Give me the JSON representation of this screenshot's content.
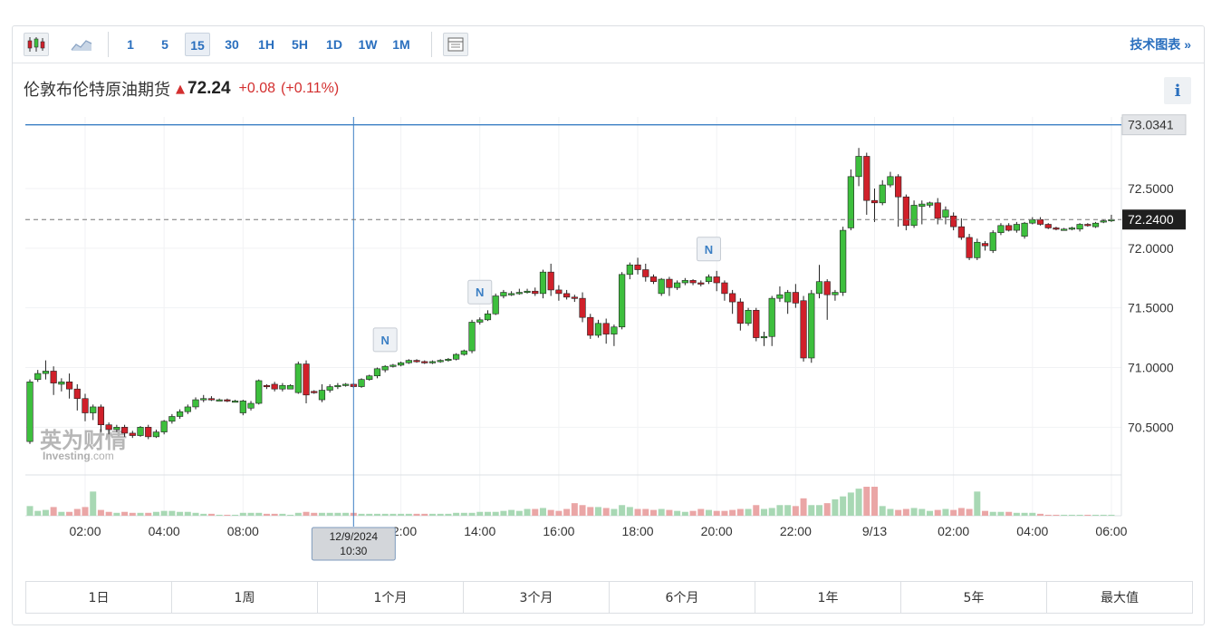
{
  "toolbar": {
    "intervals": [
      "1",
      "5",
      "15",
      "30",
      "1H",
      "5H",
      "1D",
      "1W",
      "1M"
    ],
    "active_interval": "15",
    "technical_link": "技术图表 »"
  },
  "header": {
    "instrument": "伦敦布伦特原油期货",
    "price": "72.24",
    "change": "+0.08",
    "change_pct": "(+0.11%)",
    "info_label": "i"
  },
  "watermark": {
    "cn": "英为财情",
    "en_main": "Investing",
    "en_suffix": ".com"
  },
  "crosshair": {
    "date": "12/9/2024",
    "time": "10:30",
    "price_label": "73.0341",
    "price": 73.0341,
    "candle_index": 41
  },
  "current_price_label": "72.2400",
  "news_markers": [
    {
      "label": "N",
      "candle_index": 45
    },
    {
      "label": "N",
      "candle_index": 57
    },
    {
      "label": "N",
      "candle_index": 86
    }
  ],
  "timeframes": [
    "1日",
    "1周",
    "1个月",
    "3个月",
    "6个月",
    "1年",
    "5年",
    "最大值"
  ],
  "colors": {
    "up": "#3dbf3d",
    "down": "#d0202a",
    "up_volume": "#a8d8b4",
    "down_volume": "#eaa6a6",
    "link": "#2a6fbe"
  },
  "chart_data": {
    "type": "candlestick",
    "y_ticks": [
      "72.5000",
      "72.0000",
      "71.5000",
      "71.0000",
      "70.5000"
    ],
    "y_tick_values": [
      72.5,
      72.0,
      71.5,
      71.0,
      70.5
    ],
    "ylim": [
      70.1,
      73.1
    ],
    "x_tick_labels": [
      {
        "label": "02:00",
        "index": 7
      },
      {
        "label": "04:00",
        "index": 17
      },
      {
        "label": "08:00",
        "index": 27
      },
      {
        "label": "12:00",
        "index": 47
      },
      {
        "label": "14:00",
        "index": 57
      },
      {
        "label": "16:00",
        "index": 67
      },
      {
        "label": "18:00",
        "index": 77
      },
      {
        "label": "20:00",
        "index": 87
      },
      {
        "label": "22:00",
        "index": 97
      },
      {
        "label": "9/13",
        "index": 107
      },
      {
        "label": "02:00",
        "index": 117
      },
      {
        "label": "04:00",
        "index": 127
      },
      {
        "label": "06:00",
        "index": 137
      }
    ],
    "candles": [
      [
        70.38,
        70.88,
        70.36,
        70.9,
        1.0
      ],
      [
        70.9,
        70.95,
        70.88,
        70.98,
        0.5
      ],
      [
        70.95,
        70.97,
        70.9,
        71.06,
        0.6
      ],
      [
        70.97,
        70.87,
        70.77,
        71.01,
        0.9
      ],
      [
        70.86,
        70.88,
        70.8,
        70.91,
        0.4
      ],
      [
        70.88,
        70.82,
        70.74,
        70.95,
        0.4
      ],
      [
        70.82,
        70.74,
        70.64,
        70.86,
        0.7
      ],
      [
        70.74,
        70.62,
        70.55,
        70.78,
        0.9
      ],
      [
        70.62,
        70.67,
        70.56,
        70.69,
        2.5
      ],
      [
        70.67,
        70.52,
        70.46,
        70.69,
        0.6
      ],
      [
        70.52,
        70.48,
        70.44,
        70.54,
        0.4
      ],
      [
        70.48,
        70.5,
        70.46,
        70.52,
        0.3
      ],
      [
        70.5,
        70.45,
        70.42,
        70.52,
        0.4
      ],
      [
        70.45,
        70.43,
        70.41,
        70.47,
        0.3
      ],
      [
        70.43,
        70.5,
        70.42,
        70.51,
        0.3
      ],
      [
        70.5,
        70.42,
        70.4,
        70.52,
        0.3
      ],
      [
        70.42,
        70.46,
        70.41,
        70.48,
        0.4
      ],
      [
        70.46,
        70.55,
        70.44,
        70.56,
        0.5
      ],
      [
        70.55,
        70.59,
        70.53,
        70.61,
        0.5
      ],
      [
        70.59,
        70.63,
        70.57,
        70.65,
        0.4
      ],
      [
        70.63,
        70.67,
        70.61,
        70.69,
        0.4
      ],
      [
        70.67,
        70.73,
        70.65,
        70.75,
        0.3
      ],
      [
        70.73,
        70.74,
        70.71,
        70.77,
        0.2
      ],
      [
        70.74,
        70.73,
        70.72,
        70.76,
        0.2
      ],
      [
        70.73,
        70.73,
        70.72,
        70.74,
        0.1
      ],
      [
        70.73,
        70.72,
        70.71,
        70.74,
        0.1
      ],
      [
        70.72,
        70.72,
        70.71,
        70.73,
        0.1
      ],
      [
        70.62,
        70.72,
        70.6,
        70.73,
        0.3
      ],
      [
        70.66,
        70.7,
        70.64,
        70.72,
        0.3
      ],
      [
        70.7,
        70.89,
        70.69,
        70.9,
        0.3
      ],
      [
        70.85,
        70.84,
        70.82,
        70.86,
        0.2
      ],
      [
        70.86,
        70.82,
        70.8,
        70.88,
        0.2
      ],
      [
        70.82,
        70.85,
        70.8,
        70.87,
        0.2
      ],
      [
        70.82,
        70.85,
        70.82,
        70.86,
        0.1
      ],
      [
        70.79,
        71.03,
        70.78,
        71.05,
        0.3
      ],
      [
        71.03,
        70.77,
        70.7,
        71.06,
        0.4
      ],
      [
        70.8,
        70.79,
        70.78,
        70.81,
        0.3
      ],
      [
        70.73,
        70.81,
        70.71,
        70.86,
        0.3
      ],
      [
        70.81,
        70.84,
        70.79,
        70.86,
        0.3
      ],
      [
        70.84,
        70.85,
        70.82,
        70.87,
        0.3
      ],
      [
        70.85,
        70.86,
        70.84,
        70.87,
        0.3
      ],
      [
        70.86,
        70.84,
        70.83,
        70.87,
        0.3
      ],
      [
        70.84,
        70.9,
        70.83,
        70.91,
        0.2
      ],
      [
        70.9,
        70.93,
        70.89,
        70.94,
        0.2
      ],
      [
        70.93,
        70.99,
        70.91,
        71.0,
        0.2
      ],
      [
        70.98,
        71.01,
        70.96,
        71.02,
        0.2
      ],
      [
        71.01,
        71.02,
        71.0,
        71.03,
        0.2
      ],
      [
        71.02,
        71.04,
        71.01,
        71.05,
        0.2
      ],
      [
        71.04,
        71.06,
        71.03,
        71.07,
        0.2
      ],
      [
        71.06,
        71.05,
        71.04,
        71.07,
        0.2
      ],
      [
        71.05,
        71.04,
        71.03,
        71.06,
        0.2
      ],
      [
        71.04,
        71.05,
        71.03,
        71.06,
        0.2
      ],
      [
        71.05,
        71.06,
        71.04,
        71.07,
        0.2
      ],
      [
        71.06,
        71.07,
        71.05,
        71.08,
        0.2
      ],
      [
        71.07,
        71.11,
        71.06,
        71.12,
        0.3
      ],
      [
        71.11,
        71.14,
        71.1,
        71.15,
        0.3
      ],
      [
        71.14,
        71.38,
        71.12,
        71.4,
        0.3
      ],
      [
        71.38,
        71.4,
        71.36,
        71.42,
        0.4
      ],
      [
        71.4,
        71.45,
        71.39,
        71.48,
        0.4
      ],
      [
        71.45,
        71.6,
        71.44,
        71.62,
        0.4
      ],
      [
        71.6,
        71.63,
        71.58,
        71.65,
        0.5
      ],
      [
        71.62,
        71.62,
        71.6,
        71.64,
        0.6
      ],
      [
        71.62,
        71.63,
        71.61,
        71.66,
        0.5
      ],
      [
        71.63,
        71.64,
        71.62,
        71.66,
        0.7
      ],
      [
        71.64,
        71.62,
        71.6,
        71.67,
        0.7
      ],
      [
        71.62,
        71.8,
        71.58,
        71.82,
        0.8
      ],
      [
        71.8,
        71.65,
        71.6,
        71.87,
        0.6
      ],
      [
        71.65,
        71.62,
        71.56,
        71.69,
        0.5
      ],
      [
        71.62,
        71.59,
        71.57,
        71.65,
        0.7
      ],
      [
        71.59,
        71.58,
        71.55,
        71.61,
        1.3
      ],
      [
        71.58,
        71.42,
        71.38,
        71.63,
        1.1
      ],
      [
        71.42,
        71.27,
        71.24,
        71.45,
        0.9
      ],
      [
        71.27,
        71.37,
        71.25,
        71.4,
        0.9
      ],
      [
        71.37,
        71.28,
        71.2,
        71.41,
        0.8
      ],
      [
        71.28,
        71.34,
        71.18,
        71.36,
        0.7
      ],
      [
        71.34,
        71.78,
        71.32,
        71.8,
        1.1
      ],
      [
        71.78,
        71.86,
        71.74,
        71.88,
        0.9
      ],
      [
        71.86,
        71.82,
        71.78,
        71.92,
        0.7
      ],
      [
        71.82,
        71.76,
        71.72,
        71.87,
        0.7
      ],
      [
        71.76,
        71.72,
        71.7,
        71.78,
        0.6
      ],
      [
        71.62,
        71.74,
        71.6,
        71.75,
        0.7
      ],
      [
        71.74,
        71.67,
        71.6,
        71.76,
        0.6
      ],
      [
        71.67,
        71.71,
        71.65,
        71.73,
        0.5
      ],
      [
        71.71,
        71.73,
        71.69,
        71.75,
        0.4
      ],
      [
        71.73,
        71.71,
        71.69,
        71.74,
        0.5
      ],
      [
        71.71,
        71.7,
        71.68,
        71.73,
        0.7
      ],
      [
        71.72,
        71.76,
        71.7,
        71.78,
        0.6
      ],
      [
        71.76,
        71.71,
        71.64,
        71.81,
        0.5
      ],
      [
        71.71,
        71.62,
        71.56,
        71.73,
        0.5
      ],
      [
        71.62,
        71.55,
        71.45,
        71.65,
        0.6
      ],
      [
        71.55,
        71.37,
        71.31,
        71.58,
        0.7
      ],
      [
        71.37,
        71.48,
        71.35,
        71.5,
        0.7
      ],
      [
        71.48,
        71.25,
        71.22,
        71.5,
        1.1
      ],
      [
        71.25,
        71.26,
        71.18,
        71.3,
        0.7
      ],
      [
        71.26,
        71.58,
        71.18,
        71.6,
        0.8
      ],
      [
        71.58,
        71.61,
        71.55,
        71.68,
        1.1
      ],
      [
        71.55,
        71.63,
        71.45,
        71.65,
        1.1
      ],
      [
        71.63,
        71.54,
        71.5,
        71.7,
        1.0
      ],
      [
        71.56,
        71.08,
        71.05,
        71.6,
        1.8
      ],
      [
        71.08,
        71.62,
        71.04,
        71.65,
        1.1
      ],
      [
        71.62,
        71.72,
        71.58,
        71.86,
        1.1
      ],
      [
        71.72,
        71.61,
        71.4,
        71.74,
        1.3
      ],
      [
        71.61,
        71.63,
        71.56,
        71.65,
        1.7
      ],
      [
        71.63,
        72.15,
        71.6,
        72.18,
        2.0
      ],
      [
        72.17,
        72.6,
        72.15,
        72.66,
        2.4
      ],
      [
        72.6,
        72.77,
        72.52,
        72.84,
        2.8
      ],
      [
        72.77,
        72.4,
        72.28,
        72.8,
        3.0
      ],
      [
        72.4,
        72.38,
        72.22,
        72.5,
        3.0
      ],
      [
        72.38,
        72.53,
        72.36,
        72.57,
        1.0
      ],
      [
        72.53,
        72.6,
        72.51,
        72.64,
        0.7
      ],
      [
        72.6,
        72.43,
        72.18,
        72.62,
        0.6
      ],
      [
        72.43,
        72.19,
        72.15,
        72.45,
        0.7
      ],
      [
        72.19,
        72.36,
        72.17,
        72.4,
        0.8
      ],
      [
        72.35,
        72.37,
        72.2,
        72.4,
        0.7
      ],
      [
        72.36,
        72.38,
        72.34,
        72.39,
        0.5
      ],
      [
        72.38,
        72.25,
        72.2,
        72.42,
        0.6
      ],
      [
        72.26,
        72.32,
        72.2,
        72.35,
        0.7
      ],
      [
        72.27,
        72.18,
        72.15,
        72.3,
        0.6
      ],
      [
        72.18,
        72.09,
        72.07,
        72.25,
        0.8
      ],
      [
        72.09,
        71.92,
        71.9,
        72.12,
        0.7
      ],
      [
        71.92,
        72.05,
        71.9,
        72.08,
        2.5
      ],
      [
        72.04,
        72.02,
        71.98,
        72.06,
        0.5
      ],
      [
        71.98,
        72.13,
        71.96,
        72.15,
        0.4
      ],
      [
        72.13,
        72.19,
        72.11,
        72.21,
        0.4
      ],
      [
        72.19,
        72.15,
        72.14,
        72.21,
        0.4
      ],
      [
        72.15,
        72.2,
        72.13,
        72.22,
        0.3
      ],
      [
        72.1,
        72.21,
        72.08,
        72.22,
        0.3
      ],
      [
        72.21,
        72.24,
        72.2,
        72.26,
        0.3
      ],
      [
        72.24,
        72.2,
        72.19,
        72.26,
        0.2
      ],
      [
        72.2,
        72.17,
        72.16,
        72.21,
        0.1
      ],
      [
        72.17,
        72.16,
        72.15,
        72.18,
        0.1
      ],
      [
        72.16,
        72.16,
        72.15,
        72.17,
        0.1
      ],
      [
        72.16,
        72.17,
        72.15,
        72.18,
        0.1
      ],
      [
        72.16,
        72.2,
        72.14,
        72.21,
        0.1
      ],
      [
        72.2,
        72.19,
        72.18,
        72.21,
        0.1
      ],
      [
        72.18,
        72.21,
        72.17,
        72.22,
        0.1
      ],
      [
        72.22,
        72.23,
        72.21,
        72.24,
        0.1
      ],
      [
        72.23,
        72.24,
        72.22,
        72.28,
        0.1
      ]
    ]
  }
}
